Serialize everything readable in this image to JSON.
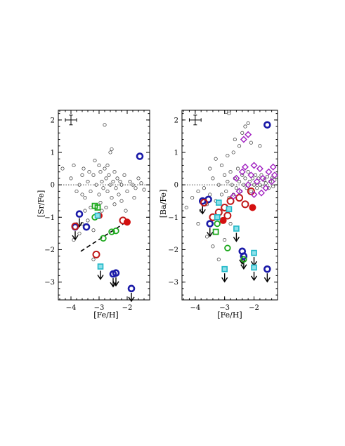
{
  "chart_data": [
    {
      "type": "scatter",
      "title": "",
      "xlabel": "[Fe/H]",
      "ylabel": "[Sr/Fe]",
      "xlim": [
        -4.45,
        -1.2
      ],
      "ylim": [
        -3.55,
        2.3
      ],
      "xticks": [
        -4,
        -3,
        -2
      ],
      "xtick_labels": [
        "−4",
        "−3",
        "−2"
      ],
      "yticks": [
        -3,
        -2,
        -1,
        0,
        1,
        2
      ],
      "ytick_labels": [
        "−3",
        "−2",
        "−1",
        "0",
        "1",
        "2"
      ],
      "reference_line_y": 0,
      "typical_error": {
        "x": -4.0,
        "y": 2.0,
        "dx": 0.2,
        "dy": 0.15
      },
      "fit_line": {
        "x": [
          -3.65,
          -1.95
        ],
        "y": [
          -2.05,
          -1.1
        ]
      },
      "series": [
        {
          "marker": "blue-open-circle",
          "color": "#1a1aa8",
          "points": [
            {
              "x": -3.7,
              "y": -0.9,
              "limit": true
            },
            {
              "x": -3.85,
              "y": -1.3,
              "limit": true
            },
            {
              "x": -3.45,
              "y": -1.3,
              "limit": false
            },
            {
              "x": -2.5,
              "y": -2.75,
              "limit": true
            },
            {
              "x": -2.4,
              "y": -2.72,
              "limit": true
            },
            {
              "x": -1.55,
              "y": 0.88,
              "limit": false
            },
            {
              "x": -1.85,
              "y": -3.2,
              "limit": true
            }
          ]
        },
        {
          "marker": "red-open-circle",
          "color": "#c01818",
          "points": [
            {
              "x": -3.85,
              "y": -1.28
            },
            {
              "x": -3.1,
              "y": -2.15
            },
            {
              "x": -2.15,
              "y": -1.1
            }
          ]
        },
        {
          "marker": "red-filled-circle",
          "color": "#d41010",
          "points": [
            {
              "x": -3.0,
              "y": -0.95
            },
            {
              "x": -2.0,
              "y": -1.15
            }
          ]
        },
        {
          "marker": "green-open-circle",
          "color": "#1ca81c",
          "points": [
            {
              "x": -3.15,
              "y": -1.0
            },
            {
              "x": -2.85,
              "y": -1.65
            },
            {
              "x": -2.55,
              "y": -1.45
            },
            {
              "x": -2.4,
              "y": -1.42
            }
          ]
        },
        {
          "marker": "green-open-square",
          "color": "#1ca81c",
          "points": [
            {
              "x": -3.15,
              "y": -0.65
            },
            {
              "x": -3.05,
              "y": -0.7
            }
          ]
        },
        {
          "marker": "cyan-square",
          "color": "#20b8c8",
          "points": [
            {
              "x": -3.05,
              "y": -0.95,
              "limit": false
            },
            {
              "x": -2.95,
              "y": -2.52,
              "limit": true
            }
          ]
        }
      ],
      "field_stars": [
        [
          -4.3,
          0.5
        ],
        [
          -4.0,
          0.2
        ],
        [
          -3.9,
          0.6
        ],
        [
          -3.8,
          -0.2
        ],
        [
          -3.7,
          0.0
        ],
        [
          -3.6,
          0.3
        ],
        [
          -3.5,
          -0.4
        ],
        [
          -3.4,
          0.1
        ],
        [
          -3.3,
          -0.2
        ],
        [
          -3.2,
          0.3
        ],
        [
          -3.1,
          0.0
        ],
        [
          -3.0,
          -0.3
        ],
        [
          -2.95,
          0.4
        ],
        [
          -2.9,
          0.1
        ],
        [
          -2.85,
          -0.1
        ],
        [
          -2.8,
          0.5
        ],
        [
          -2.75,
          0.2
        ],
        [
          -2.7,
          -0.2
        ],
        [
          -2.65,
          0.3
        ],
        [
          -2.6,
          0.0
        ],
        [
          -2.55,
          -0.4
        ],
        [
          -2.5,
          0.1
        ],
        [
          -2.45,
          0.4
        ],
        [
          -2.4,
          -0.1
        ],
        [
          -2.35,
          0.2
        ],
        [
          -2.3,
          -0.3
        ],
        [
          -2.25,
          0.1
        ],
        [
          -2.2,
          0.0
        ],
        [
          -2.1,
          0.3
        ],
        [
          -2.0,
          -0.2
        ],
        [
          -1.9,
          0.1
        ],
        [
          -1.8,
          0.0
        ],
        [
          -1.7,
          -0.1
        ],
        [
          -1.6,
          0.2
        ],
        [
          -1.5,
          0.05
        ],
        [
          -1.4,
          -0.15
        ],
        [
          -3.3,
          -0.7
        ],
        [
          -3.5,
          -0.8
        ],
        [
          -3.7,
          -1.5
        ],
        [
          -3.9,
          -1.7
        ],
        [
          -3.4,
          -1.1
        ],
        [
          -3.6,
          -1.2
        ],
        [
          -2.9,
          -0.8
        ],
        [
          -3.2,
          -1.4
        ],
        [
          -2.8,
          1.85
        ],
        [
          -2.6,
          1.0
        ],
        [
          -2.55,
          1.1
        ],
        [
          -3.2,
          -2.3
        ],
        [
          -3.0,
          0.6
        ],
        [
          -2.7,
          0.6
        ],
        [
          -3.35,
          0.4
        ],
        [
          -2.95,
          -0.55
        ],
        [
          -2.45,
          -0.6
        ],
        [
          -2.2,
          -0.5
        ],
        [
          -2.05,
          -0.8
        ],
        [
          -1.75,
          -0.4
        ],
        [
          -3.55,
          0.5
        ],
        [
          -3.15,
          0.75
        ],
        [
          -2.75,
          -0.7
        ],
        [
          -3.6,
          -0.3
        ]
      ]
    },
    {
      "type": "scatter",
      "title": "",
      "xlabel": "[Fe/H]",
      "ylabel": "[Ba/Fe]",
      "xlim": [
        -4.45,
        -1.2
      ],
      "ylim": [
        -3.55,
        2.3
      ],
      "xticks": [
        -4,
        -3,
        -2
      ],
      "xtick_labels": [
        "−4",
        "−3",
        "−2"
      ],
      "yticks": [
        -3,
        -2,
        -1,
        0,
        1,
        2
      ],
      "ytick_labels": [
        "−3",
        "−2",
        "−1",
        "0",
        "1",
        "2"
      ],
      "reference_line_y": 0,
      "typical_error": {
        "x": -4.0,
        "y": 2.0,
        "dx": 0.2,
        "dy": 0.15
      },
      "series": [
        {
          "marker": "blue-open-circle",
          "color": "#1a1aa8",
          "points": [
            {
              "x": -3.75,
              "y": -0.5,
              "limit": true
            },
            {
              "x": -3.55,
              "y": -0.45,
              "limit": false
            },
            {
              "x": -3.5,
              "y": -1.2,
              "limit": true
            },
            {
              "x": -2.4,
              "y": -2.05,
              "limit": true
            },
            {
              "x": -2.35,
              "y": -2.2,
              "limit": true
            },
            {
              "x": -1.55,
              "y": 1.85,
              "limit": false
            },
            {
              "x": -1.55,
              "y": -2.6,
              "limit": true
            }
          ]
        },
        {
          "marker": "red-open-circle",
          "color": "#c01818",
          "points": [
            {
              "x": -3.7,
              "y": -0.55
            },
            {
              "x": -3.4,
              "y": -1.0
            },
            {
              "x": -3.2,
              "y": -0.85
            },
            {
              "x": -3.0,
              "y": -0.7
            },
            {
              "x": -2.8,
              "y": -0.5
            },
            {
              "x": -2.5,
              "y": -0.4
            },
            {
              "x": -2.3,
              "y": -0.6
            },
            {
              "x": -2.1,
              "y": -0.2
            },
            {
              "x": -2.9,
              "y": -0.95
            }
          ]
        },
        {
          "marker": "red-filled-circle",
          "color": "#d41010",
          "points": [
            {
              "x": -3.05,
              "y": -1.1
            },
            {
              "x": -2.05,
              "y": -0.7
            }
          ]
        },
        {
          "marker": "green-open-circle",
          "color": "#1ca81c",
          "points": [
            {
              "x": -3.25,
              "y": -1.2
            },
            {
              "x": -2.9,
              "y": -1.95
            },
            {
              "x": -2.35,
              "y": -2.3
            }
          ]
        },
        {
          "marker": "green-open-square",
          "color": "#1ca81c",
          "points": [
            {
              "x": -3.3,
              "y": -1.45
            }
          ]
        },
        {
          "marker": "cyan-square",
          "color": "#20b8c8",
          "points": [
            {
              "x": -3.2,
              "y": -0.55,
              "limit": false
            },
            {
              "x": -2.85,
              "y": -0.75,
              "limit": false
            },
            {
              "x": -2.6,
              "y": -1.35,
              "limit": true
            },
            {
              "x": -3.0,
              "y": -2.6,
              "limit": true
            },
            {
              "x": -2.0,
              "y": -2.1,
              "limit": true
            },
            {
              "x": -2.0,
              "y": -2.55,
              "limit": true
            },
            {
              "x": -3.25,
              "y": -1.0,
              "limit": false
            }
          ]
        },
        {
          "marker": "magenta-open-diamond",
          "color": "#a020c0",
          "points": [
            {
              "x": -2.6,
              "y": 0.2
            },
            {
              "x": -2.4,
              "y": 0.4
            },
            {
              "x": -2.3,
              "y": 0.55
            },
            {
              "x": -2.2,
              "y": 0.0
            },
            {
              "x": -2.1,
              "y": 0.3
            },
            {
              "x": -2.0,
              "y": 0.6
            },
            {
              "x": -1.9,
              "y": 0.1
            },
            {
              "x": -1.8,
              "y": 0.5
            },
            {
              "x": -1.7,
              "y": 0.2
            },
            {
              "x": -1.6,
              "y": -0.1
            },
            {
              "x": -1.5,
              "y": 0.4
            },
            {
              "x": -1.4,
              "y": 0.1
            },
            {
              "x": -1.3,
              "y": 0.3
            },
            {
              "x": -2.35,
              "y": 1.4
            },
            {
              "x": -2.2,
              "y": 1.55
            },
            {
              "x": -2.5,
              "y": -0.2
            },
            {
              "x": -2.7,
              "y": -0.35
            },
            {
              "x": -1.35,
              "y": 0.55
            },
            {
              "x": -2.0,
              "y": -0.3
            },
            {
              "x": -1.75,
              "y": -0.25
            }
          ]
        }
      ],
      "field_stars": [
        [
          -4.3,
          -0.7
        ],
        [
          -4.1,
          -0.4
        ],
        [
          -3.9,
          -0.2
        ],
        [
          -3.8,
          -0.8
        ],
        [
          -3.7,
          -0.1
        ],
        [
          -3.6,
          -0.6
        ],
        [
          -3.5,
          -0.3
        ],
        [
          -3.4,
          0.2
        ],
        [
          -3.3,
          -0.5
        ],
        [
          -3.2,
          0.0
        ],
        [
          -3.1,
          -0.3
        ],
        [
          -3.0,
          0.3
        ],
        [
          -2.95,
          -0.2
        ],
        [
          -2.9,
          0.1
        ],
        [
          -2.85,
          -0.4
        ],
        [
          -2.8,
          0.4
        ],
        [
          -2.75,
          0.0
        ],
        [
          -2.7,
          -0.3
        ],
        [
          -2.65,
          0.2
        ],
        [
          -2.6,
          -0.1
        ],
        [
          -2.55,
          0.5
        ],
        [
          -2.5,
          0.1
        ],
        [
          -2.45,
          -0.2
        ],
        [
          -2.4,
          0.3
        ],
        [
          -2.35,
          0.0
        ],
        [
          -2.3,
          0.2
        ],
        [
          -2.25,
          -0.1
        ],
        [
          -2.2,
          0.4
        ],
        [
          -2.15,
          0.1
        ],
        [
          -2.1,
          -0.2
        ],
        [
          -2.05,
          0.2
        ],
        [
          -2.0,
          0.0
        ],
        [
          -1.95,
          0.3
        ],
        [
          -1.9,
          -0.1
        ],
        [
          -1.85,
          0.2
        ],
        [
          -1.8,
          0.0
        ],
        [
          -1.75,
          0.3
        ],
        [
          -1.7,
          -0.05
        ],
        [
          -1.65,
          0.15
        ],
        [
          -1.6,
          0.05
        ],
        [
          -1.55,
          0.25
        ],
        [
          -1.5,
          -0.1
        ],
        [
          -1.45,
          0.1
        ],
        [
          -1.4,
          0.2
        ],
        [
          -1.35,
          -0.05
        ],
        [
          -1.3,
          0.15
        ],
        [
          -3.9,
          -1.2
        ],
        [
          -3.6,
          -1.6
        ],
        [
          -3.4,
          -1.9
        ],
        [
          -3.2,
          -2.3
        ],
        [
          -3.0,
          -1.7
        ],
        [
          -2.8,
          -1.2
        ],
        [
          -2.7,
          1.0
        ],
        [
          -2.5,
          1.2
        ],
        [
          -2.3,
          1.8
        ],
        [
          -2.2,
          1.9
        ],
        [
          -2.95,
          2.25
        ],
        [
          -2.85,
          2.2
        ],
        [
          -2.65,
          1.4
        ],
        [
          -1.8,
          1.2
        ],
        [
          -3.3,
          0.8
        ],
        [
          -3.1,
          0.6
        ],
        [
          -2.9,
          0.9
        ],
        [
          -3.5,
          0.5
        ],
        [
          -2.4,
          1.6
        ],
        [
          -2.1,
          1.3
        ]
      ]
    }
  ]
}
